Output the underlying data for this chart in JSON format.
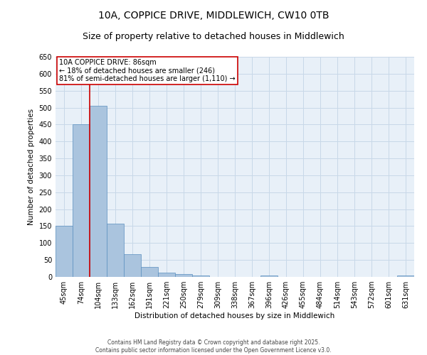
{
  "title1": "10A, COPPICE DRIVE, MIDDLEWICH, CW10 0TB",
  "title2": "Size of property relative to detached houses in Middlewich",
  "xlabel": "Distribution of detached houses by size in Middlewich",
  "ylabel": "Number of detached properties",
  "categories": [
    "45sqm",
    "74sqm",
    "104sqm",
    "133sqm",
    "162sqm",
    "191sqm",
    "221sqm",
    "250sqm",
    "279sqm",
    "309sqm",
    "338sqm",
    "367sqm",
    "396sqm",
    "426sqm",
    "455sqm",
    "484sqm",
    "514sqm",
    "543sqm",
    "572sqm",
    "601sqm",
    "631sqm"
  ],
  "values": [
    150,
    450,
    505,
    158,
    67,
    30,
    13,
    8,
    4,
    0,
    0,
    0,
    4,
    0,
    0,
    0,
    0,
    0,
    0,
    0,
    4
  ],
  "bar_color": "#aac4de",
  "bar_edge_color": "#5a8fbf",
  "grid_color": "#c8d8e8",
  "background_color": "#e8f0f8",
  "annotation_box_text": "10A COPPICE DRIVE: 86sqm\n← 18% of detached houses are smaller (246)\n81% of semi-detached houses are larger (1,110) →",
  "annotation_box_color": "#cc0000",
  "ylim": [
    0,
    650
  ],
  "yticks": [
    0,
    50,
    100,
    150,
    200,
    250,
    300,
    350,
    400,
    450,
    500,
    550,
    600,
    650
  ],
  "footer": "Contains HM Land Registry data © Crown copyright and database right 2025.\nContains public sector information licensed under the Open Government Licence v3.0.",
  "title1_fontsize": 10,
  "title2_fontsize": 9,
  "axis_label_fontsize": 7.5,
  "tick_fontsize": 7,
  "annotation_fontsize": 7,
  "footer_fontsize": 5.5
}
